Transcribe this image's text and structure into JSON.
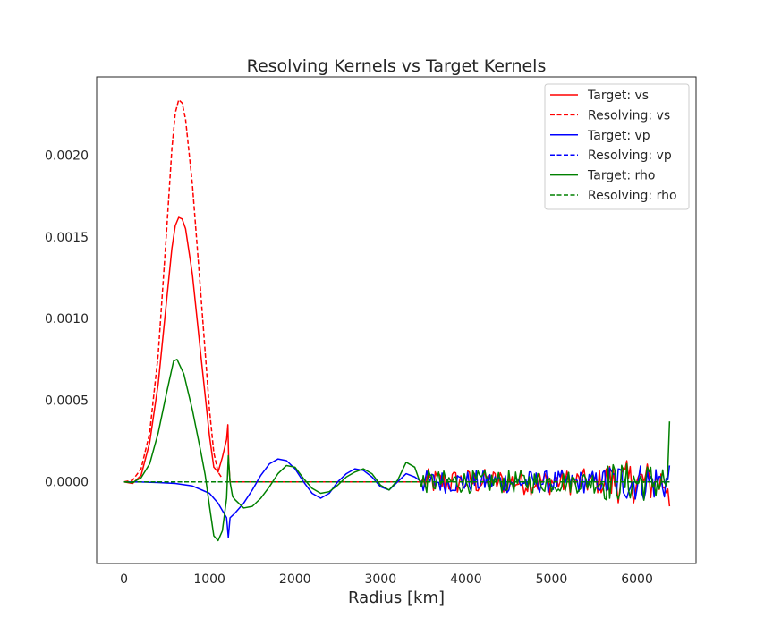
{
  "chart_data": {
    "type": "line",
    "title": "Resolving Kernels vs Target Kernels",
    "xlabel": "Radius [km]",
    "ylabel": "",
    "xlim": [
      -320,
      6690
    ],
    "ylim": [
      -0.0005,
      0.00248
    ],
    "xticks": [
      0,
      1000,
      2000,
      3000,
      4000,
      5000,
      6000
    ],
    "xtick_labels": [
      "0",
      "1000",
      "2000",
      "3000",
      "4000",
      "5000",
      "6000"
    ],
    "yticks": [
      0.0,
      0.0005,
      0.001,
      0.0015,
      0.002
    ],
    "ytick_labels": [
      "0.0000",
      "0.0005",
      "0.0010",
      "0.0015",
      "0.0020"
    ],
    "grid": false,
    "legend_position": "top-right",
    "colors": {
      "red": "#ff0000",
      "blue": "#0000ff",
      "green": "#008000"
    },
    "series": [
      {
        "name": "Target: vs",
        "color": "#ff0000",
        "style": "solid",
        "x": [
          0,
          100,
          200,
          300,
          400,
          500,
          560,
          600,
          640,
          680,
          720,
          800,
          900,
          1000,
          1050,
          1100,
          1150,
          1200,
          1215,
          1225,
          1240,
          1300,
          1400,
          1500,
          1600,
          1800,
          2000,
          2200,
          2400,
          2600,
          2800,
          3000,
          3200,
          3480
        ],
        "y": [
          0,
          -1e-05,
          4e-05,
          0.00024,
          0.0006,
          0.00112,
          0.00143,
          0.00157,
          0.00162,
          0.00161,
          0.00155,
          0.00127,
          0.00077,
          0.00028,
          9e-05,
          6e-05,
          0.00015,
          0.00026,
          0.00035,
          0.00012,
          0.0,
          0.0,
          0.0,
          0.0,
          0.0,
          0.0,
          0.0,
          0.0,
          0.0,
          0.0,
          0.0,
          0.0,
          0.0,
          0.0
        ]
      },
      {
        "name": "Resolving: vs",
        "color": "#ff0000",
        "style": "dashed",
        "x": [
          0,
          100,
          200,
          300,
          400,
          500,
          560,
          600,
          640,
          680,
          720,
          800,
          900,
          1000,
          1050,
          1100,
          1150
        ],
        "y": [
          0,
          1e-05,
          8e-05,
          0.0003,
          0.00078,
          0.00155,
          0.00204,
          0.00226,
          0.00234,
          0.00232,
          0.00222,
          0.00182,
          0.00114,
          0.00044,
          0.00018,
          6e-05,
          2e-05
        ]
      },
      {
        "name": "Target: vp",
        "color": "#0000ff",
        "style": "solid",
        "x": [
          0,
          200,
          400,
          600,
          800,
          1000,
          1100,
          1200,
          1220,
          1240,
          1300,
          1400,
          1500,
          1600,
          1700,
          1800,
          1900,
          2000,
          2100,
          2200,
          2300,
          2400,
          2500,
          2600,
          2700,
          2800,
          2900,
          3000,
          3100,
          3200,
          3300,
          3400,
          3480
        ],
        "y": [
          0,
          -1e-06,
          -4e-06,
          -1e-05,
          -2.5e-05,
          -7e-05,
          -0.00013,
          -0.00022,
          -0.00034,
          -0.00022,
          -0.00019,
          -0.00013,
          -5e-05,
          4e-05,
          0.00011,
          0.00014,
          0.00013,
          8e-05,
          0.0,
          -7e-05,
          -0.0001,
          -7e-05,
          0.0,
          5e-05,
          8e-05,
          7e-05,
          3e-05,
          -3e-05,
          -5e-05,
          0.0,
          5e-05,
          3e-05,
          0.0
        ]
      },
      {
        "name": "Resolving: vp",
        "color": "#0000ff",
        "style": "dashed",
        "x": [
          0,
          6380
        ],
        "y": [
          0,
          0
        ]
      },
      {
        "name": "Target: rho",
        "color": "#008000",
        "style": "solid",
        "x": [
          0,
          100,
          200,
          300,
          400,
          500,
          580,
          620,
          700,
          800,
          900,
          950,
          1000,
          1050,
          1100,
          1150,
          1200,
          1220,
          1240,
          1270,
          1300,
          1400,
          1500,
          1600,
          1700,
          1800,
          1900,
          2000,
          2100,
          2200,
          2300,
          2400,
          2500,
          2600,
          2700,
          2800,
          2900,
          3000,
          3100,
          3200,
          3300,
          3400,
          3480
        ],
        "y": [
          0,
          -5e-06,
          2.5e-05,
          0.00011,
          0.0003,
          0.00055,
          0.00074,
          0.00075,
          0.00066,
          0.00044,
          0.00018,
          4e-05,
          -0.00015,
          -0.00033,
          -0.00036,
          -0.0003,
          -0.0001,
          0.00016,
          0.0,
          -9e-05,
          -0.00011,
          -0.00016,
          -0.00015,
          -0.0001,
          -3e-05,
          5e-05,
          0.0001,
          9e-05,
          2e-05,
          -4e-05,
          -7e-05,
          -6e-05,
          -2e-05,
          3e-05,
          6e-05,
          8e-05,
          5e-05,
          -2e-05,
          -5e-05,
          1e-05,
          0.00012,
          9e-05,
          -3e-05
        ]
      },
      {
        "name": "Resolving: rho",
        "color": "#008000",
        "style": "dashed",
        "x": [
          0,
          6380
        ],
        "y": [
          0,
          0
        ]
      }
    ],
    "noise_region": {
      "x_start": 3480,
      "x_end": 6380,
      "step": 20,
      "red_amplitude": 8e-05,
      "blue_amplitude": 7e-05,
      "green_amplitude": 7e-05,
      "tail_amplitude_boost": 5e-05,
      "end_spikes": {
        "green": 0.00037,
        "blue": 0.0001,
        "red": -0.00015
      }
    }
  }
}
